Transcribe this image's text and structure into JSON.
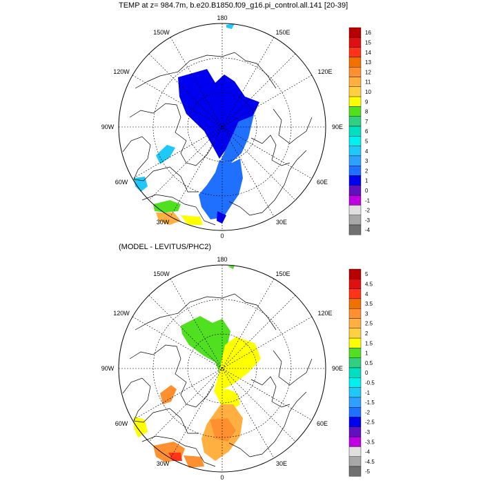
{
  "top": {
    "title": "TEMP at z= 984.7m, b.e20.B1850.f09_g16.pi_control.all.141 [20-39]",
    "lon_labels": {
      "top": "180",
      "bottom": "0",
      "left": "90W",
      "right": "90E",
      "ul1": "150W",
      "ul2": "120W",
      "ur1": "150E",
      "ur2": "120E",
      "ll1": "60W",
      "ll2": "30W",
      "lr1": "60E",
      "lr2": "30E"
    },
    "colorbar": {
      "labels": [
        "16",
        "15",
        "14",
        "13",
        "12",
        "11",
        "10",
        "9",
        "8",
        "7",
        "6",
        "5",
        "4",
        "3",
        "2",
        "1",
        "0",
        "-1",
        "-2",
        "-3",
        "-4"
      ],
      "colors": [
        "#b80000",
        "#e01010",
        "#ff3318",
        "#f07000",
        "#ff9030",
        "#ffb040",
        "#ffd040",
        "#ffff00",
        "#50e020",
        "#30d080",
        "#00e0c0",
        "#00f0f0",
        "#20c8f8",
        "#30a0ff",
        "#2070ff",
        "#0000f0",
        "#6010c0",
        "#c000e0",
        "#e0e0e0",
        "#a8a8a8",
        "#707070"
      ]
    }
  },
  "bottom": {
    "title": "(MODEL - LEVITUS/PHC2)",
    "lon_labels": {
      "top": "180",
      "bottom": "0",
      "left": "90W",
      "right": "90E",
      "ul1": "150W",
      "ul2": "120W",
      "ur1": "150E",
      "ur2": "120E",
      "ll1": "60W",
      "ll2": "30W",
      "lr1": "60E",
      "lr2": "30E"
    },
    "colorbar": {
      "labels": [
        "5",
        "4.5",
        "4",
        "3.5",
        "3",
        "2.5",
        "2",
        "1.5",
        "1",
        "0.5",
        "0",
        "-0.5",
        "-1",
        "-1.5",
        "-2",
        "-2.5",
        "-3",
        "-3.5",
        "-4",
        "-4.5",
        "-5"
      ],
      "colors": [
        "#b80000",
        "#e01010",
        "#ff3318",
        "#f07000",
        "#ff9030",
        "#ffb040",
        "#ffd040",
        "#ffff00",
        "#50e020",
        "#30d080",
        "#00e0c0",
        "#00f0f0",
        "#20c8f8",
        "#30a0ff",
        "#2070ff",
        "#0000f0",
        "#6010c0",
        "#c000e0",
        "#e0e0e0",
        "#a8a8a8",
        "#707070"
      ]
    }
  }
}
